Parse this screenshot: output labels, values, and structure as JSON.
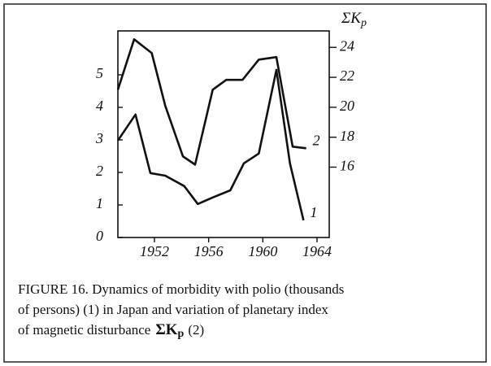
{
  "chart_data": {
    "type": "line",
    "series": [
      {
        "name": "1",
        "color": "#111111",
        "x": [
          1949.3,
          1950.6,
          1951.7,
          1952.8,
          1954.2,
          1955.2,
          1956.3,
          1957.6,
          1958.6,
          1959.7,
          1961.0,
          1962.0,
          1963.0
        ],
        "values": [
          2.98,
          3.78,
          1.98,
          1.9,
          1.58,
          1.03,
          1.23,
          1.45,
          2.28,
          2.58,
          5.15,
          2.28,
          0.53
        ]
      },
      {
        "name": "2",
        "color": "#111111",
        "axis": "y2",
        "x": [
          1949.3,
          1950.5,
          1951.8,
          1952.8,
          1954.1,
          1955.0,
          1956.3,
          1957.3,
          1958.5,
          1959.7,
          1961.0,
          1962.2,
          1963.2
        ],
        "values": [
          21.17,
          24.54,
          23.62,
          20.09,
          16.72,
          16.17,
          21.17,
          21.83,
          21.83,
          23.18,
          23.35,
          17.37,
          17.26
        ]
      }
    ],
    "xlim": [
      1949.3,
      1964.9
    ],
    "xticks": [
      1952,
      1956,
      1960,
      1964
    ],
    "ylim": [
      0,
      6.35
    ],
    "yticks": [
      0,
      1,
      2,
      3,
      4,
      5
    ],
    "y2lim": [
      11.3,
      25.1
    ],
    "y2ticks": [
      16,
      18,
      20,
      22,
      24
    ],
    "y2label": {
      "main": "ΣK",
      "sub": "p"
    },
    "caption": {
      "lines": [
        "FIGURE 16. Dynamics of morbidity with polio (thousands",
        "of persons) (1) in Japan and variation of planetary index",
        "of magnetic disturbance"
      ],
      "symbol": "ΣK",
      "subscript": "p",
      "end": "(2)"
    }
  }
}
